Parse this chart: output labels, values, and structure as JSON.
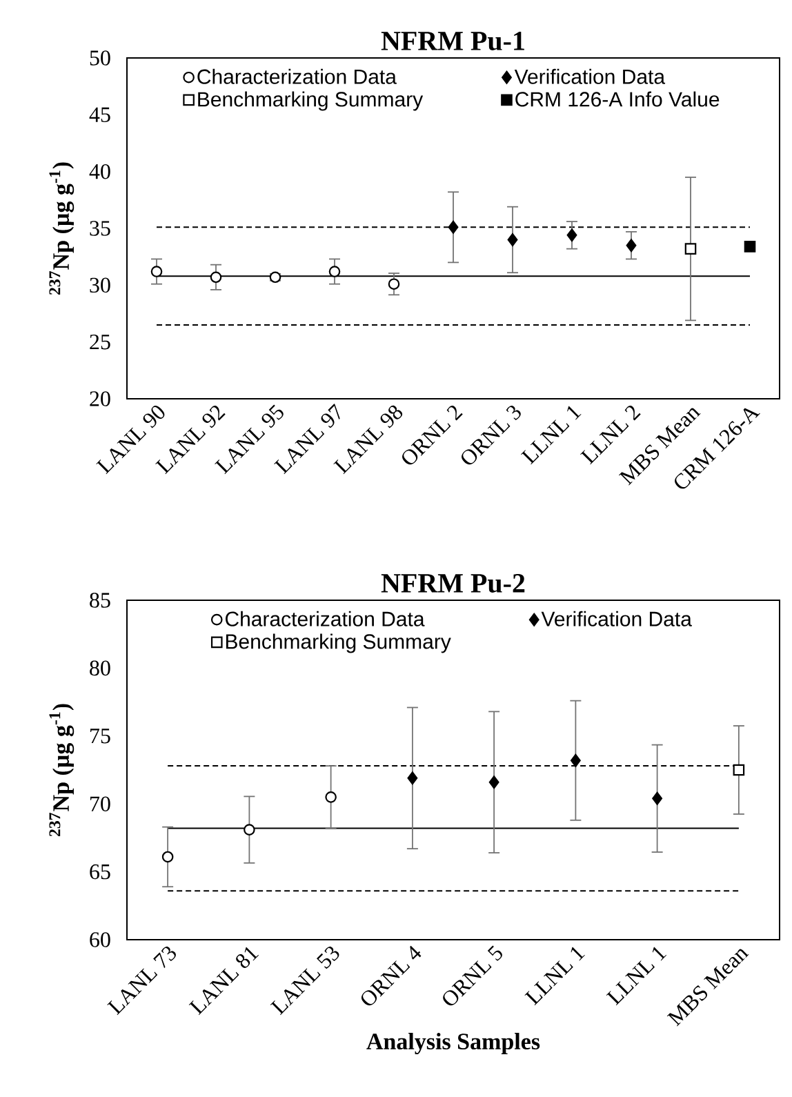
{
  "chart_data": [
    {
      "type": "scatter",
      "title": "NFRM Pu-1",
      "ylabel": "$^{237}$Np (µg g$^{-1}$)",
      "categories": [
        "LANL 90",
        "LANL 92",
        "LANL 95",
        "LANL 97",
        "LANL 98",
        "ORNL 2",
        "ORNL 3",
        "LLNL 1",
        "LLNL 2",
        "MBS Mean",
        "CRM 126-A"
      ],
      "ylim": [
        20,
        50
      ],
      "yticks": [
        20,
        25,
        30,
        35,
        40,
        45,
        50
      ],
      "legend": "top",
      "series": [
        {
          "name": "Characterization Data",
          "color": "#ffffff",
          "marker": "circle",
          "values": [
            31.2,
            30.7,
            30.7,
            31.2,
            30.1,
            null,
            null,
            null,
            null,
            null,
            null
          ],
          "errors": [
            1.1,
            1.1,
            0.3,
            1.1,
            0.95,
            null,
            null,
            null,
            null,
            null,
            null
          ]
        },
        {
          "name": "Verification Data",
          "color": "#000000",
          "marker": "diamond",
          "values": [
            null,
            null,
            null,
            null,
            null,
            35.1,
            34.0,
            34.4,
            33.5,
            null,
            null
          ],
          "errors": [
            null,
            null,
            null,
            null,
            null,
            3.1,
            2.9,
            1.2,
            1.2,
            null,
            null
          ]
        },
        {
          "name": "Benchmarking Summary",
          "color": "#ffffff",
          "marker": "square",
          "values": [
            null,
            null,
            null,
            null,
            null,
            null,
            null,
            null,
            null,
            33.2,
            null
          ],
          "errors": [
            null,
            null,
            null,
            null,
            null,
            null,
            null,
            null,
            null,
            6.3,
            null
          ]
        },
        {
          "name": "CRM 126-A Info Value",
          "color": "#000000",
          "marker": "square",
          "values": [
            null,
            null,
            null,
            null,
            null,
            null,
            null,
            null,
            null,
            null,
            33.4
          ]
        }
      ],
      "ref_lines": [
        {
          "axis": "y",
          "value": 30.8,
          "line_style": "solid",
          "color": "#000000"
        },
        {
          "axis": "y",
          "value": 35.1,
          "line_style": "dashed",
          "color": "#000000"
        },
        {
          "axis": "y",
          "value": 26.5,
          "line_style": "dashed",
          "color": "#000000"
        }
      ]
    },
    {
      "type": "scatter",
      "title": "NFRM Pu-2",
      "ylabel": "$^{237}$Np (µg g$^{-1}$)",
      "xlabel": "Analysis Samples",
      "categories": [
        "LANL 73",
        "LANL 81",
        "LANL 53",
        "ORNL 4",
        "ORNL 5",
        "LLNL 1",
        "LLNL 1",
        "MBS Mean"
      ],
      "ylim": [
        60,
        85
      ],
      "yticks": [
        60,
        65,
        70,
        75,
        80,
        85
      ],
      "legend": "top",
      "series": [
        {
          "name": "Characterization Data",
          "color": "#ffffff",
          "marker": "circle",
          "values": [
            66.1,
            68.1,
            70.5,
            null,
            null,
            null,
            null,
            null
          ],
          "errors": [
            2.2,
            2.45,
            2.3,
            null,
            null,
            null,
            null,
            null
          ]
        },
        {
          "name": "Verification Data",
          "color": "#000000",
          "marker": "diamond",
          "values": [
            null,
            null,
            null,
            71.9,
            71.6,
            73.2,
            70.4,
            null
          ],
          "errors": [
            null,
            null,
            null,
            5.2,
            5.2,
            4.4,
            3.95,
            null
          ]
        },
        {
          "name": "Benchmarking Summary",
          "color": "#ffffff",
          "marker": "square",
          "values": [
            null,
            null,
            null,
            null,
            null,
            null,
            null,
            72.5
          ],
          "errors": [
            null,
            null,
            null,
            null,
            null,
            null,
            null,
            3.25
          ]
        }
      ],
      "ref_lines": [
        {
          "axis": "y",
          "value": 68.2,
          "line_style": "solid",
          "color": "#000000"
        },
        {
          "axis": "y",
          "value": 72.8,
          "line_style": "dashed",
          "color": "#000000"
        },
        {
          "axis": "y",
          "value": 63.6,
          "line_style": "dashed",
          "color": "#000000"
        }
      ]
    }
  ]
}
